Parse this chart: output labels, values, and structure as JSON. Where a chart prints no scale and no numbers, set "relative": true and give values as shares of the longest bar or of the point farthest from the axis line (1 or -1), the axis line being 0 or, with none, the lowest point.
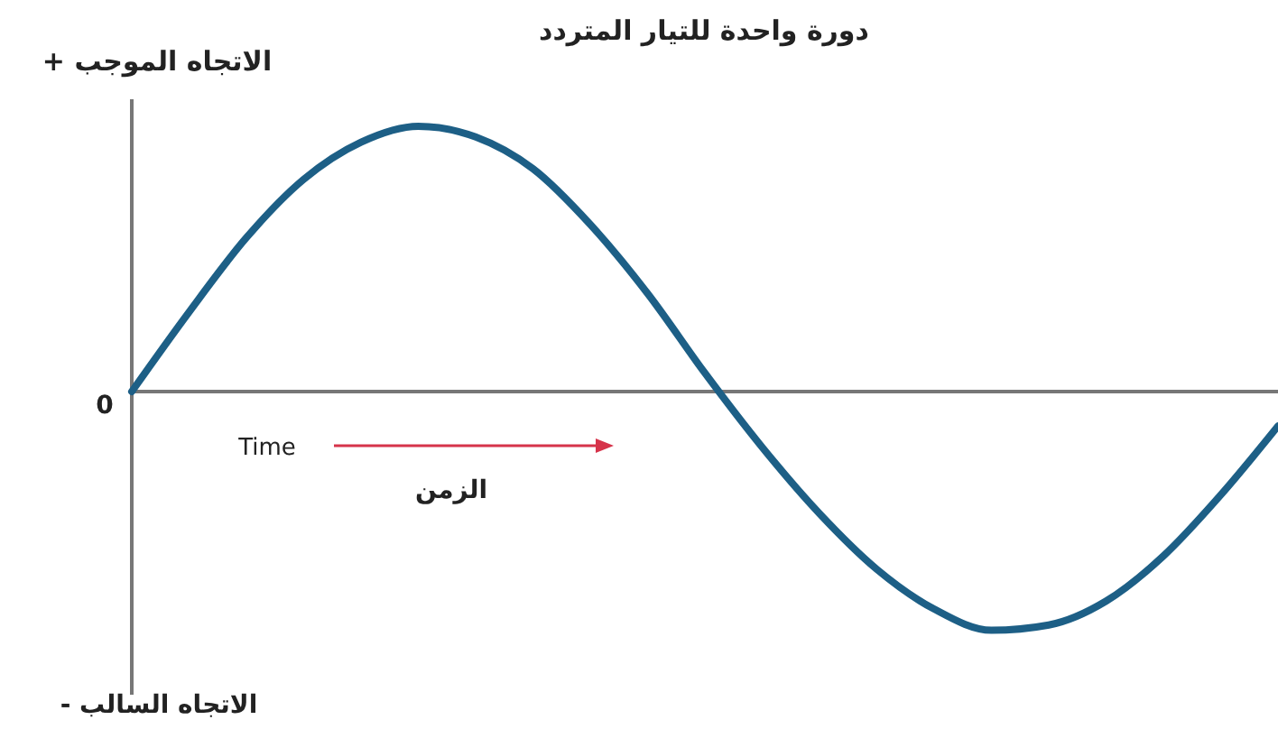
{
  "chart_data": {
    "type": "line",
    "title": "دورة واحدة للتيار المتردد",
    "ylabel": "+ الاتجاه الموجب",
    "relative": true,
    "categories": [
      null,
      null,
      null,
      null,
      null,
      null,
      null,
      null,
      null,
      null,
      null,
      null,
      null,
      null,
      null,
      null,
      null,
      null,
      null,
      null,
      null
    ],
    "series": [
      {
        "color": "#1d5f86",
        "values": [
          0,
          0.3,
          0.58,
          0.8,
          0.94,
          1,
          0.96,
          0.84,
          0.63,
          0.37,
          0.07,
          -0.21,
          -0.46,
          -0.67,
          -0.82,
          -0.9,
          -0.88,
          -0.79,
          -0.62,
          -0.39,
          -0.13
        ]
      }
    ],
    "annotations": [
      "0",
      "Time",
      "الزمن",
      "- الاتجاه السالب"
    ],
    "marker": "none",
    "line_style": "solid"
  }
}
